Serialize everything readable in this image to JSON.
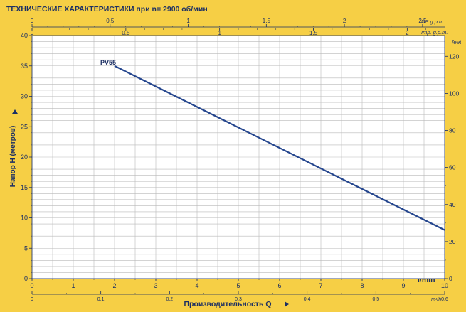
{
  "colors": {
    "background": "#f6cf45",
    "plot_area": "#ffffff",
    "grid": "#b9b9b9",
    "axis_text": "#1c2f63",
    "line": "#25468e"
  },
  "header": {
    "title": "ТЕХНИЧЕСКИЕ ХАРАКТЕРИСТИКИ при n= 2900 об/мин",
    "us_gpm_label": "US g.p.m.",
    "imp_gpm_label": "Imp. g.p.m.",
    "feet_label": "feet"
  },
  "chart_data": {
    "type": "line",
    "title": "ТЕХНИЧЕСКИЕ ХАРАКТЕРИСТИКИ при n= 2900 об/мин",
    "xlabel": "Производительность Q",
    "ylabel": "Напор H (метров)",
    "x_unit": "l/min",
    "x2_unit": "m³/h",
    "xlim": [
      0,
      10
    ],
    "ylim": [
      0,
      40
    ],
    "grid": true,
    "series": [
      {
        "name": "PV55",
        "x": [
          2,
          10
        ],
        "y": [
          35,
          8
        ]
      }
    ],
    "x_ticks": [
      "0",
      "1",
      "2",
      "3",
      "4",
      "5",
      "6",
      "7",
      "8",
      "9",
      "10"
    ],
    "y_ticks": [
      "0",
      "5",
      "10",
      "15",
      "20",
      "25",
      "30",
      "35",
      "40"
    ],
    "y2_ticks": [
      "0",
      "20",
      "40",
      "60",
      "80",
      "100",
      "120"
    ],
    "y2_unit": "feet",
    "x_m3h_ticks": [
      "0",
      "0.1",
      "0.2",
      "0.3",
      "0.4",
      "0.5",
      "0.6"
    ],
    "x_us_gpm_ticks": [
      "0",
      "0.5",
      "1",
      "1.5",
      "2",
      "2.5"
    ],
    "x_imp_gpm_ticks": [
      "0",
      "0.5",
      "1",
      "1.5",
      "2"
    ]
  },
  "footer": {
    "xlabel": "Производительность Q",
    "m3h_unit": "m³/h",
    "lmin_unit": "l/min"
  }
}
